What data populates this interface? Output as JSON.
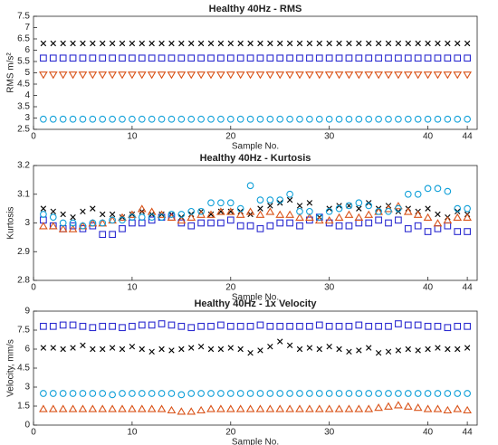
{
  "chart_data": [
    {
      "type": "scatter",
      "title": "Healthy 40Hz - RMS",
      "x_label": "Sample No.",
      "y_label": "RMS m/s²",
      "x": [
        1,
        2,
        3,
        4,
        5,
        6,
        7,
        8,
        9,
        10,
        11,
        12,
        13,
        14,
        15,
        16,
        17,
        18,
        19,
        20,
        21,
        22,
        23,
        24,
        25,
        26,
        27,
        28,
        29,
        30,
        31,
        32,
        33,
        34,
        35,
        36,
        37,
        38,
        39,
        40,
        41,
        42,
        43,
        44
      ],
      "xlim": [
        0,
        45
      ],
      "xticks": [
        0,
        10,
        20,
        30,
        40,
        44
      ],
      "ylim": [
        2.5,
        7.5
      ],
      "yticks": [
        2.5,
        3,
        3.5,
        4,
        4.5,
        5,
        5.5,
        6,
        6.5,
        7,
        7.5
      ],
      "series": [
        {
          "color": "#000000",
          "marker": "x",
          "values": [
            6.3,
            6.3,
            6.3,
            6.3,
            6.3,
            6.3,
            6.3,
            6.3,
            6.3,
            6.3,
            6.3,
            6.3,
            6.3,
            6.3,
            6.3,
            6.3,
            6.3,
            6.3,
            6.3,
            6.3,
            6.3,
            6.3,
            6.3,
            6.3,
            6.3,
            6.3,
            6.3,
            6.3,
            6.3,
            6.3,
            6.3,
            6.3,
            6.3,
            6.3,
            6.3,
            6.3,
            6.3,
            6.3,
            6.3,
            6.3,
            6.3,
            6.3,
            6.3,
            6.3
          ]
        },
        {
          "color": "#2b2bd0",
          "marker": "square",
          "values": [
            5.65,
            5.65,
            5.65,
            5.65,
            5.65,
            5.65,
            5.65,
            5.65,
            5.65,
            5.65,
            5.65,
            5.65,
            5.65,
            5.65,
            5.65,
            5.65,
            5.65,
            5.65,
            5.65,
            5.65,
            5.65,
            5.65,
            5.65,
            5.65,
            5.65,
            5.65,
            5.65,
            5.65,
            5.65,
            5.65,
            5.65,
            5.65,
            5.65,
            5.65,
            5.65,
            5.65,
            5.65,
            5.65,
            5.65,
            5.65,
            5.65,
            5.65,
            5.65,
            5.65
          ]
        },
        {
          "color": "#d95319",
          "marker": "triangle-down",
          "values": [
            4.9,
            4.9,
            4.9,
            4.9,
            4.9,
            4.9,
            4.9,
            4.9,
            4.9,
            4.9,
            4.9,
            4.9,
            4.9,
            4.9,
            4.9,
            4.9,
            4.9,
            4.9,
            4.9,
            4.9,
            4.9,
            4.9,
            4.9,
            4.9,
            4.9,
            4.9,
            4.9,
            4.9,
            4.9,
            4.9,
            4.9,
            4.9,
            4.9,
            4.9,
            4.9,
            4.9,
            4.9,
            4.9,
            4.9,
            4.9,
            4.9,
            4.9,
            4.9,
            4.9
          ]
        },
        {
          "color": "#0e9fd8",
          "marker": "circle",
          "values": [
            2.95,
            2.95,
            2.95,
            2.95,
            2.95,
            2.95,
            2.95,
            2.95,
            2.95,
            2.95,
            2.95,
            2.95,
            2.95,
            2.95,
            2.95,
            2.95,
            2.95,
            2.95,
            2.95,
            2.95,
            2.95,
            2.95,
            2.95,
            2.95,
            2.95,
            2.95,
            2.95,
            2.95,
            2.95,
            2.95,
            2.95,
            2.95,
            2.95,
            2.95,
            2.95,
            2.95,
            2.95,
            2.95,
            2.95,
            2.95,
            2.95,
            2.95,
            2.95,
            2.95
          ]
        }
      ]
    },
    {
      "type": "scatter",
      "title": "Healthy 40Hz - Kurtosis",
      "x_label": "Sample No.",
      "y_label": "Kurtosis",
      "x": [
        1,
        2,
        3,
        4,
        5,
        6,
        7,
        8,
        9,
        10,
        11,
        12,
        13,
        14,
        15,
        16,
        17,
        18,
        19,
        20,
        21,
        22,
        23,
        24,
        25,
        26,
        27,
        28,
        29,
        30,
        31,
        32,
        33,
        34,
        35,
        36,
        37,
        38,
        39,
        40,
        41,
        42,
        43,
        44
      ],
      "xlim": [
        0,
        45
      ],
      "xticks": [
        0,
        10,
        20,
        30,
        40,
        44
      ],
      "ylim": [
        2.8,
        3.2
      ],
      "yticks": [
        2.8,
        2.9,
        3,
        3.1,
        3.2
      ],
      "series": [
        {
          "color": "#000000",
          "marker": "x",
          "values": [
            3.05,
            3.04,
            3.03,
            3.02,
            3.04,
            3.05,
            3.03,
            3.03,
            3.02,
            3.03,
            3.04,
            3.03,
            3.03,
            3.03,
            3.02,
            3.03,
            3.04,
            3.03,
            3.04,
            3.04,
            3.04,
            3.03,
            3.05,
            3.06,
            3.07,
            3.08,
            3.06,
            3.07,
            3.02,
            3.05,
            3.06,
            3.06,
            3.05,
            3.07,
            3.05,
            3.06,
            3.04,
            3.05,
            3.04,
            3.05,
            3.03,
            3.02,
            3.04,
            3.03
          ]
        },
        {
          "color": "#2b2bd0",
          "marker": "square",
          "values": [
            3.01,
            2.99,
            2.98,
            2.99,
            2.98,
            2.99,
            2.96,
            2.96,
            2.98,
            3.0,
            3.0,
            3.01,
            3.02,
            3.02,
            3.0,
            2.99,
            3.0,
            3.0,
            3.0,
            3.01,
            2.99,
            2.99,
            2.98,
            2.99,
            3.0,
            3.0,
            2.99,
            3.01,
            3.02,
            3.0,
            2.99,
            2.99,
            3.0,
            3.0,
            3.01,
            3.0,
            3.01,
            2.98,
            2.99,
            2.97,
            2.98,
            2.99,
            2.97,
            2.97
          ]
        },
        {
          "color": "#d95319",
          "marker": "triangle-up",
          "values": [
            2.99,
            2.99,
            2.98,
            2.98,
            2.99,
            3.0,
            3.0,
            3.01,
            3.02,
            3.03,
            3.05,
            3.04,
            3.03,
            3.02,
            3.01,
            3.02,
            3.03,
            3.03,
            3.04,
            3.04,
            3.03,
            3.04,
            3.03,
            3.04,
            3.03,
            3.03,
            3.02,
            3.02,
            3.01,
            3.01,
            3.02,
            3.03,
            3.02,
            3.03,
            3.04,
            3.05,
            3.06,
            3.04,
            3.03,
            3.02,
            3.0,
            3.01,
            3.02,
            3.02
          ]
        },
        {
          "color": "#0e9fd8",
          "marker": "circle",
          "values": [
            3.03,
            3.02,
            3.0,
            3.0,
            2.99,
            3.0,
            3.0,
            3.01,
            3.01,
            3.02,
            3.02,
            3.02,
            3.02,
            3.03,
            3.03,
            3.04,
            3.04,
            3.07,
            3.07,
            3.07,
            3.05,
            3.13,
            3.08,
            3.08,
            3.08,
            3.1,
            3.04,
            3.04,
            3.02,
            3.04,
            3.05,
            3.06,
            3.07,
            3.06,
            3.04,
            3.04,
            3.05,
            3.1,
            3.1,
            3.12,
            3.12,
            3.11,
            3.05,
            3.05
          ]
        }
      ]
    },
    {
      "type": "scatter",
      "title": "Healthy 40Hz - 1x Velocity",
      "x_label": "Sample No.",
      "y_label": "Velocity, mm/s",
      "x": [
        1,
        2,
        3,
        4,
        5,
        6,
        7,
        8,
        9,
        10,
        11,
        12,
        13,
        14,
        15,
        16,
        17,
        18,
        19,
        20,
        21,
        22,
        23,
        24,
        25,
        26,
        27,
        28,
        29,
        30,
        31,
        32,
        33,
        34,
        35,
        36,
        37,
        38,
        39,
        40,
        41,
        42,
        43,
        44
      ],
      "xlim": [
        0,
        45
      ],
      "xticks": [
        0,
        10,
        20,
        30,
        40,
        44
      ],
      "ylim": [
        0,
        9
      ],
      "yticks": [
        0,
        1.5,
        3,
        4.5,
        6,
        7.5,
        9
      ],
      "series": [
        {
          "color": "#2b2bd0",
          "marker": "square",
          "values": [
            7.8,
            7.8,
            7.9,
            7.9,
            7.8,
            7.7,
            7.8,
            7.8,
            7.7,
            7.8,
            7.9,
            7.9,
            8.0,
            7.9,
            7.8,
            7.7,
            7.8,
            7.8,
            7.9,
            7.8,
            7.8,
            7.8,
            7.9,
            7.8,
            7.8,
            7.8,
            7.8,
            7.8,
            7.9,
            7.8,
            7.8,
            7.8,
            7.9,
            7.8,
            7.8,
            7.8,
            8.0,
            7.9,
            7.9,
            7.8,
            7.8,
            7.7,
            7.8,
            7.8
          ]
        },
        {
          "color": "#000000",
          "marker": "x",
          "values": [
            6.1,
            6.1,
            6.0,
            6.1,
            6.3,
            6.0,
            6.0,
            6.1,
            6.0,
            6.2,
            6.0,
            5.8,
            6.0,
            5.9,
            6.0,
            6.1,
            6.2,
            6.0,
            6.0,
            6.1,
            6.0,
            5.7,
            5.9,
            6.2,
            6.6,
            6.3,
            6.0,
            6.1,
            6.0,
            6.2,
            6.0,
            5.8,
            5.9,
            6.1,
            5.7,
            5.8,
            5.9,
            6.0,
            5.9,
            6.0,
            6.1,
            6.0,
            6.0,
            6.1
          ]
        },
        {
          "color": "#0e9fd8",
          "marker": "circle",
          "values": [
            2.5,
            2.5,
            2.5,
            2.5,
            2.5,
            2.5,
            2.5,
            2.4,
            2.5,
            2.5,
            2.5,
            2.5,
            2.5,
            2.5,
            2.4,
            2.5,
            2.5,
            2.5,
            2.5,
            2.5,
            2.5,
            2.5,
            2.5,
            2.5,
            2.5,
            2.5,
            2.5,
            2.5,
            2.5,
            2.5,
            2.5,
            2.5,
            2.5,
            2.5,
            2.5,
            2.5,
            2.5,
            2.5,
            2.5,
            2.5,
            2.5,
            2.5,
            2.5,
            2.5
          ]
        },
        {
          "color": "#d95319",
          "marker": "triangle-up",
          "values": [
            1.3,
            1.3,
            1.3,
            1.3,
            1.3,
            1.3,
            1.3,
            1.3,
            1.3,
            1.3,
            1.3,
            1.3,
            1.3,
            1.2,
            1.1,
            1.1,
            1.2,
            1.3,
            1.3,
            1.3,
            1.3,
            1.3,
            1.3,
            1.3,
            1.3,
            1.3,
            1.3,
            1.3,
            1.3,
            1.3,
            1.3,
            1.3,
            1.3,
            1.3,
            1.4,
            1.5,
            1.6,
            1.5,
            1.4,
            1.3,
            1.3,
            1.2,
            1.3,
            1.2
          ]
        }
      ]
    }
  ]
}
